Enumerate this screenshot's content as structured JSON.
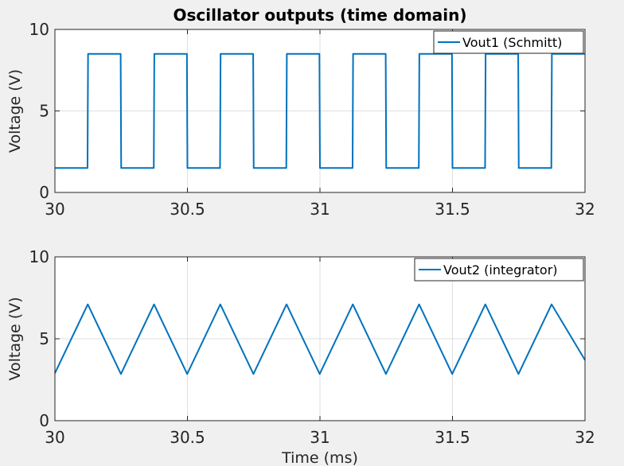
{
  "chart_data": [
    {
      "type": "line",
      "title": "Oscillator outputs (time domain)",
      "xlabel": "",
      "ylabel": "Voltage (V)",
      "xlim": [
        30,
        32
      ],
      "ylim": [
        0,
        10
      ],
      "xticks": [
        30,
        30.5,
        31,
        31.5,
        32
      ],
      "xtick_labels": [
        "30",
        "30.5",
        "31",
        "31.5",
        "32"
      ],
      "yticks": [
        0,
        5,
        10
      ],
      "ytick_labels": [
        "0",
        "5",
        "10"
      ],
      "grid": true,
      "legend_position": "top-right",
      "series": [
        {
          "name": "Vout1 (Schmitt)",
          "color": "#0072bd",
          "x": [
            30.0,
            30.123,
            30.125,
            30.248,
            30.25,
            30.373,
            30.375,
            30.498,
            30.5,
            30.623,
            30.625,
            30.748,
            30.75,
            30.873,
            30.875,
            30.998,
            31.0,
            31.123,
            31.125,
            31.248,
            31.25,
            31.373,
            31.375,
            31.498,
            31.5,
            31.623,
            31.625,
            31.748,
            31.75,
            31.873,
            31.875,
            32.0
          ],
          "y": [
            1.5,
            1.5,
            8.5,
            8.5,
            1.5,
            1.5,
            8.5,
            8.5,
            1.5,
            1.5,
            8.5,
            8.5,
            1.5,
            1.5,
            8.5,
            8.5,
            1.5,
            1.5,
            8.5,
            8.5,
            1.5,
            1.5,
            8.5,
            8.5,
            1.5,
            1.5,
            8.5,
            8.5,
            1.5,
            1.5,
            8.5,
            8.5
          ]
        }
      ]
    },
    {
      "type": "line",
      "title": "",
      "xlabel": "Time (ms)",
      "ylabel": "Voltage (V)",
      "xlim": [
        30,
        32
      ],
      "ylim": [
        0,
        10
      ],
      "xticks": [
        30,
        30.5,
        31,
        31.5,
        32
      ],
      "xtick_labels": [
        "30",
        "30.5",
        "31",
        "31.5",
        "32"
      ],
      "yticks": [
        0,
        5,
        10
      ],
      "ytick_labels": [
        "0",
        "5",
        "10"
      ],
      "grid": true,
      "legend_position": "top-right",
      "series": [
        {
          "name": "Vout2 (integrator)",
          "color": "#0072bd",
          "x": [
            30.0,
            30.124,
            30.249,
            30.374,
            30.499,
            30.624,
            30.749,
            30.874,
            30.999,
            31.124,
            31.249,
            31.374,
            31.499,
            31.624,
            31.749,
            31.874,
            32.0
          ],
          "y": [
            2.9,
            7.1,
            2.85,
            7.1,
            2.85,
            7.1,
            2.85,
            7.1,
            2.85,
            7.1,
            2.85,
            7.1,
            2.85,
            7.1,
            2.85,
            7.1,
            3.7
          ]
        }
      ]
    }
  ]
}
